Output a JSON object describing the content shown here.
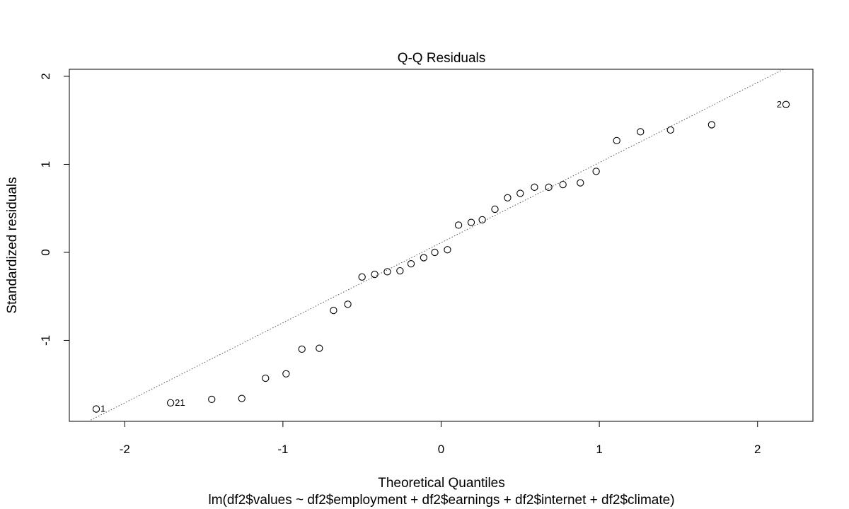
{
  "chart_data": {
    "type": "scatter",
    "title": "Q-Q Residuals",
    "xlabel": "Theoretical Quantiles",
    "ylabel": "Standardized residuals",
    "subtitle": "lm(df2$values ~ df2$employment + df2$earnings + df2$internet + df2$climate)",
    "xlim": [
      -2.35,
      2.35
    ],
    "ylim": [
      -1.92,
      2.08
    ],
    "xticks": [
      "-2",
      "-1",
      "0",
      "1",
      "2"
    ],
    "yticks": [
      "-1",
      "0",
      "1",
      "2"
    ],
    "grid": false,
    "legend": "none",
    "reference_line": {
      "intercept": 0.11,
      "slope": 0.91,
      "style": "dotted",
      "color": "#555555"
    },
    "x": [
      -2.18,
      -1.71,
      -1.45,
      -1.26,
      -1.11,
      -0.98,
      -0.88,
      -0.77,
      -0.68,
      -0.59,
      -0.5,
      -0.42,
      -0.34,
      -0.26,
      -0.19,
      -0.11,
      -0.04,
      0.04,
      0.11,
      0.19,
      0.26,
      0.34,
      0.42,
      0.5,
      0.59,
      0.68,
      0.77,
      0.88,
      0.98,
      1.11,
      1.26,
      1.45,
      1.71,
      2.18
    ],
    "y": [
      -1.78,
      -1.71,
      -1.67,
      -1.66,
      -1.43,
      -1.38,
      -1.1,
      -1.09,
      -0.66,
      -0.59,
      -0.28,
      -0.25,
      -0.22,
      -0.21,
      -0.13,
      -0.06,
      0.0,
      0.03,
      0.31,
      0.34,
      0.37,
      0.49,
      0.62,
      0.67,
      0.74,
      0.74,
      0.77,
      0.79,
      0.92,
      1.27,
      1.37,
      1.39,
      1.45,
      1.68
    ],
    "point_labels": [
      {
        "index": 0,
        "text": "1",
        "side": "right"
      },
      {
        "index": 1,
        "text": "21",
        "side": "right"
      },
      {
        "index": 33,
        "text": "2",
        "side": "left"
      }
    ]
  }
}
